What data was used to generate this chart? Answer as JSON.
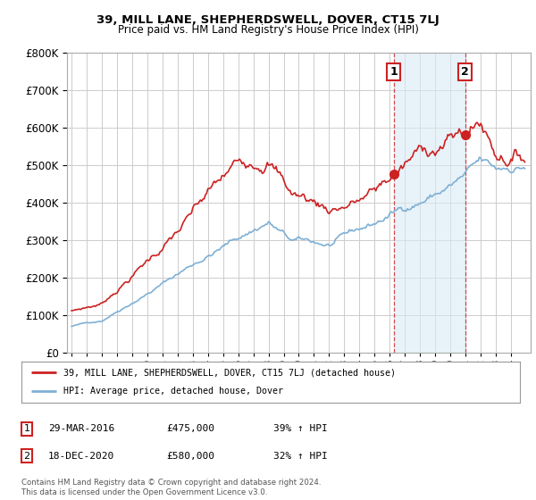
{
  "title": "39, MILL LANE, SHEPHERDSWELL, DOVER, CT15 7LJ",
  "subtitle": "Price paid vs. HM Land Registry's House Price Index (HPI)",
  "hpi_color": "#7eb0d5",
  "hpi_fill_color": "#daeaf5",
  "price_color": "#cc2222",
  "background_color": "#ffffff",
  "grid_color": "#cccccc",
  "sale1_date_x": 2016.25,
  "sale1_price": 475000,
  "sale2_date_x": 2020.97,
  "sale2_price": 580000,
  "legend_line1": "39, MILL LANE, SHEPHERDSWELL, DOVER, CT15 7LJ (detached house)",
  "legend_line2": "HPI: Average price, detached house, Dover",
  "ylim_top": 800000,
  "ylim_bottom": 0,
  "xmin": 1994.7,
  "xmax": 2025.3,
  "footnote": "Contains HM Land Registry data © Crown copyright and database right 2024.\nThis data is licensed under the Open Government Licence v3.0."
}
